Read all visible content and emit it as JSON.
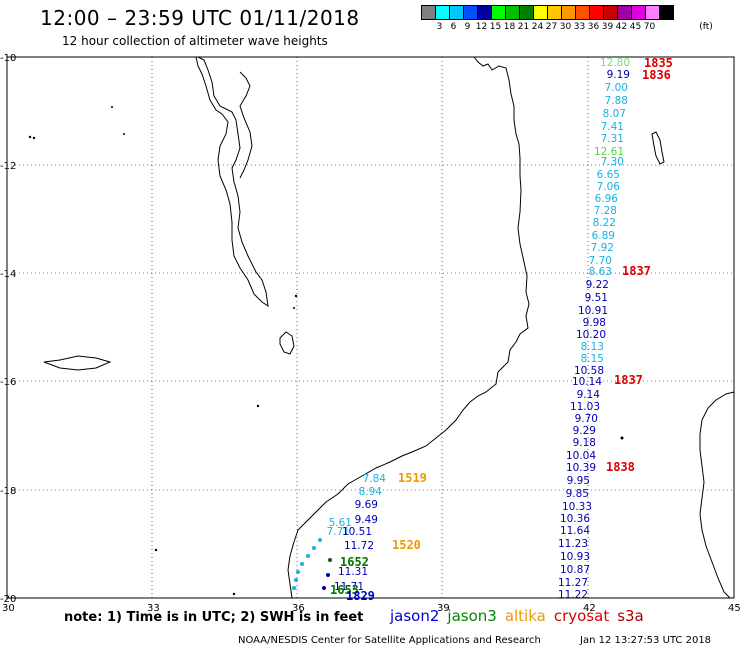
{
  "header": {
    "title": "12:00 – 23:59 UTC 01/11/2018",
    "subtitle": "12 hour collection of altimeter wave heights"
  },
  "legend": {
    "colors": [
      "#808080",
      "#00ffff",
      "#00c8ff",
      "#0050ff",
      "#0000a0",
      "#00ff00",
      "#00c000",
      "#008000",
      "#ffff00",
      "#ffc800",
      "#ff9600",
      "#ff5000",
      "#ff0000",
      "#c80000",
      "#a000a0",
      "#e000e0",
      "#ff80ff",
      "#000000"
    ],
    "labels": [
      "3",
      "6",
      "9",
      "12",
      "15",
      "18",
      "21",
      "24",
      "27",
      "30",
      "33",
      "36",
      "39",
      "42",
      "45",
      "70"
    ],
    "unit": "(ft)"
  },
  "axes": {
    "lat_labels": [
      "-10",
      "-12",
      "-14",
      "-16",
      "-18",
      "-20"
    ],
    "lon_labels": [
      "30",
      "33",
      "36",
      "39",
      "42",
      "45"
    ]
  },
  "track_values": [
    {
      "v": "12.80",
      "c": "#7cdc7c"
    },
    {
      "v": "9.19",
      "c": "#0000b0"
    },
    {
      "v": "7.00",
      "c": "#1ab0e0"
    },
    {
      "v": "7.88",
      "c": "#1ab0e0"
    },
    {
      "v": "8.07",
      "c": "#1ab0e0"
    },
    {
      "v": "7.41",
      "c": "#1ab0e0"
    },
    {
      "v": "7.31",
      "c": "#1ab0e0"
    },
    {
      "v": "12.61",
      "c": "#44dd44"
    },
    {
      "v": "7.30",
      "c": "#1ab0e0"
    },
    {
      "v": "6.65",
      "c": "#1ab0e0"
    },
    {
      "v": "7.06",
      "c": "#1ab0e0"
    },
    {
      "v": "6.96",
      "c": "#1ab0e0"
    },
    {
      "v": "7.28",
      "c": "#1ab0e0"
    },
    {
      "v": "8.22",
      "c": "#1ab0e0"
    },
    {
      "v": "6.89",
      "c": "#1ab0e0"
    },
    {
      "v": "7.92",
      "c": "#1ab0e0"
    },
    {
      "v": "7.70",
      "c": "#1ab0e0"
    },
    {
      "v": "8.63",
      "c": "#1ab0e0"
    },
    {
      "v": "9.22",
      "c": "#0000b0"
    },
    {
      "v": "9.51",
      "c": "#0000b0"
    },
    {
      "v": "10.91",
      "c": "#0000b0"
    },
    {
      "v": "9.98",
      "c": "#0000b0"
    },
    {
      "v": "10.20",
      "c": "#0000b0"
    },
    {
      "v": "8.13",
      "c": "#1ab0e0"
    },
    {
      "v": "8.15",
      "c": "#1ab0e0"
    },
    {
      "v": "10.58",
      "c": "#0000b0"
    },
    {
      "v": "10.14",
      "c": "#0000b0"
    },
    {
      "v": "9.14",
      "c": "#0000b0"
    },
    {
      "v": "11.03",
      "c": "#0000b0"
    },
    {
      "v": "9.70",
      "c": "#0000b0"
    },
    {
      "v": "9.29",
      "c": "#0000b0"
    },
    {
      "v": "9.18",
      "c": "#0000b0"
    },
    {
      "v": "10.04",
      "c": "#0000b0"
    },
    {
      "v": "10.39",
      "c": "#0000b0"
    },
    {
      "v": "9.95",
      "c": "#0000b0"
    },
    {
      "v": "9.85",
      "c": "#0000b0"
    },
    {
      "v": "10.33",
      "c": "#0000b0"
    },
    {
      "v": "10.36",
      "c": "#0000b0"
    },
    {
      "v": "11.64",
      "c": "#0000b0"
    },
    {
      "v": "11.23",
      "c": "#0000b0"
    },
    {
      "v": "10.93",
      "c": "#0000b0"
    },
    {
      "v": "10.87",
      "c": "#0000b0"
    },
    {
      "v": "11.27",
      "c": "#0000b0"
    },
    {
      "v": "11.22",
      "c": "#0000b0"
    }
  ],
  "coastal_values": [
    {
      "v": "7.84",
      "c": "#1ab0e0"
    },
    {
      "v": "8.94",
      "c": "#1ab0e0"
    },
    {
      "v": "9.69",
      "c": "#0000b0"
    },
    {
      "v": "9.49",
      "c": "#0000b0"
    },
    {
      "v": "5.61",
      "c": "#1ab0e0"
    },
    {
      "v": "7.71",
      "c": "#1ab0e0"
    },
    {
      "v": "10.51",
      "c": "#0000b0"
    },
    {
      "v": "11.72",
      "c": "#0000b0"
    },
    {
      "v": "11.31",
      "c": "#0000b0"
    },
    {
      "v": "11.71",
      "c": "#0000b0"
    }
  ],
  "pass_times": [
    {
      "t": "1835",
      "c": "#dd0000"
    },
    {
      "t": "1836",
      "c": "#dd0000"
    },
    {
      "t": "1837",
      "c": "#dd0000"
    },
    {
      "t": "1837",
      "c": "#dd0000"
    },
    {
      "t": "1838",
      "c": "#dd0000"
    },
    {
      "t": "1519",
      "c": "#ee9900"
    },
    {
      "t": "1520",
      "c": "#ee9900"
    },
    {
      "t": "1652",
      "c": "#007700"
    },
    {
      "t": "1653",
      "c": "#007700"
    },
    {
      "t": "1829",
      "c": "#0000cc"
    }
  ],
  "footer": {
    "note": "note: 1) Time is in UTC; 2) SWH is in feet",
    "satellites": [
      {
        "name": "jason2",
        "color": "#0000cc"
      },
      {
        "name": "jason3",
        "color": "#008800"
      },
      {
        "name": "altika",
        "color": "#ee9900"
      },
      {
        "name": "cryosat",
        "color": "#dd0000"
      },
      {
        "name": "s3a",
        "color": "#aa0000"
      }
    ],
    "credit": "NOAA/NESDIS Center for Satellite Applications and Research",
    "timestamp": "Jan 12 13:27:53 UTC 2018"
  }
}
